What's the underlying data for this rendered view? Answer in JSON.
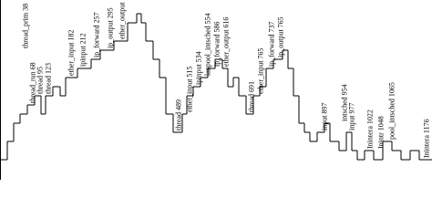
{
  "chart_data": {
    "type": "step",
    "x": [
      0,
      8,
      15,
      22,
      30,
      38,
      45,
      50,
      58,
      66,
      72,
      85,
      100,
      110,
      125,
      140,
      150,
      155,
      160,
      168,
      175,
      182,
      190,
      200,
      205,
      212,
      220,
      228,
      236,
      244,
      250,
      256,
      262,
      270,
      278,
      285,
      292,
      300,
      310,
      316,
      322,
      328,
      334,
      340,
      348,
      356,
      362,
      372,
      380,
      386,
      392,
      400,
      410,
      420,
      430,
      440,
      450,
      460,
      474
    ],
    "values": [
      1,
      3,
      5,
      6,
      7,
      8,
      6,
      8,
      9,
      8,
      10,
      11,
      12,
      13,
      14,
      16,
      17,
      16,
      14,
      12,
      10,
      6,
      4,
      6,
      8,
      9,
      10,
      11,
      12,
      11,
      9,
      10,
      8,
      6,
      8,
      9,
      11,
      12,
      13,
      11,
      8,
      5,
      4,
      3,
      4,
      5,
      3,
      2,
      4,
      2,
      1,
      2,
      1,
      3,
      2,
      1,
      2,
      1,
      1
    ],
    "color": "#000000",
    "xlim": [
      0,
      474
    ],
    "ylim": [
      0,
      18
    ],
    "annotations": [
      {
        "text": "thread_run 68",
        "x": 30,
        "y": 7
      },
      {
        "text": "thread_prim 38",
        "x": 22,
        "y": 13
      },
      {
        "text": "thread 95",
        "x": 38,
        "y": 8
      },
      {
        "text": "thread 123",
        "x": 47,
        "y": 8
      },
      {
        "text": "ether_input 182",
        "x": 72,
        "y": 10
      },
      {
        "text": "ipinput 212",
        "x": 85,
        "y": 11
      },
      {
        "text": "ip_forward 257",
        "x": 100,
        "y": 12
      },
      {
        "text": "ip_output 295",
        "x": 115,
        "y": 13
      },
      {
        "text": "ether_output",
        "x": 128,
        "y": 14
      },
      {
        "text": "thread 489",
        "x": 190,
        "y": 4
      },
      {
        "text": "ether_input 515",
        "x": 202,
        "y": 6
      },
      {
        "text": "ipinput 534",
        "x": 212,
        "y": 9
      },
      {
        "text": "lanpool_intsched 554",
        "x": 222,
        "y": 10
      },
      {
        "text": "ip_forward 586",
        "x": 232,
        "y": 11
      },
      {
        "text": "ether_output 616",
        "x": 242,
        "y": 11
      },
      {
        "text": "thread 691",
        "x": 270,
        "y": 6
      },
      {
        "text": "ether_input 765",
        "x": 280,
        "y": 8
      },
      {
        "text": "ip_forward 737",
        "x": 292,
        "y": 11
      },
      {
        "text": "ip_output 765",
        "x": 302,
        "y": 12
      },
      {
        "text": "input 897",
        "x": 350,
        "y": 4
      },
      {
        "text": "intsched 954",
        "x": 372,
        "y": 5
      },
      {
        "text": "input 977",
        "x": 380,
        "y": 4
      },
      {
        "text": "Inintera 1022",
        "x": 400,
        "y": 2
      },
      {
        "text": "Inintr 1048",
        "x": 412,
        "y": 2
      },
      {
        "text": "pool_intsched 1065",
        "x": 424,
        "y": 3
      },
      {
        "text": "Inintera 1176",
        "x": 462,
        "y": 1
      }
    ]
  }
}
